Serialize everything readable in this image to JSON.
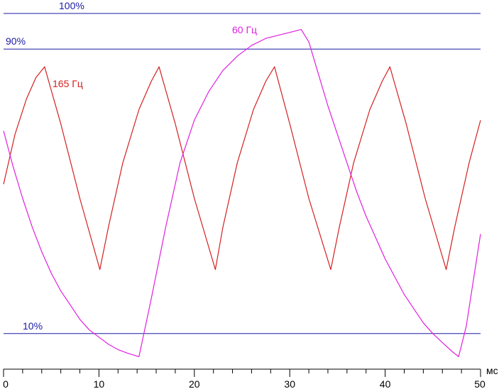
{
  "chart_data": {
    "type": "line",
    "xlabel": "мс",
    "xlim": [
      0,
      50
    ],
    "x_ticks": [
      "0",
      "10",
      "20",
      "30",
      "40",
      "50"
    ],
    "reference_lines": [
      {
        "label": "100%",
        "value": 100,
        "color": "#1a1aa6"
      },
      {
        "label": "90%",
        "value": 90,
        "color": "#1a1aa6"
      },
      {
        "label": "10%",
        "value": 10,
        "color": "#1a1aa6"
      }
    ],
    "series": [
      {
        "name": "165 Гц",
        "color": "#d42020",
        "points": [
          [
            0,
            52
          ],
          [
            1.2,
            66
          ],
          [
            2.4,
            76
          ],
          [
            3.4,
            82
          ],
          [
            4.3,
            85
          ],
          [
            6.0,
            69
          ],
          [
            8.0,
            48
          ],
          [
            10.1,
            28
          ],
          [
            11.0,
            40
          ],
          [
            12.5,
            58
          ],
          [
            14.2,
            73
          ],
          [
            15.5,
            81
          ],
          [
            16.3,
            85
          ],
          [
            18.0,
            69
          ],
          [
            20.0,
            48
          ],
          [
            22.2,
            28
          ],
          [
            23.0,
            40
          ],
          [
            24.5,
            58
          ],
          [
            26.2,
            73
          ],
          [
            27.5,
            81
          ],
          [
            28.4,
            85
          ],
          [
            30.0,
            69
          ],
          [
            32.0,
            48
          ],
          [
            34.3,
            28
          ],
          [
            35.2,
            40
          ],
          [
            36.7,
            58
          ],
          [
            38.4,
            73
          ],
          [
            39.7,
            81
          ],
          [
            40.5,
            85
          ],
          [
            42.2,
            69
          ],
          [
            44.2,
            48
          ],
          [
            46.4,
            28
          ],
          [
            47.3,
            40
          ],
          [
            48.8,
            58
          ],
          [
            50,
            70
          ]
        ]
      },
      {
        "name": "60 Гц",
        "color": "#e020e0",
        "points": [
          [
            0,
            67
          ],
          [
            1,
            57
          ],
          [
            2,
            48
          ],
          [
            3,
            40
          ],
          [
            4,
            33
          ],
          [
            5,
            27
          ],
          [
            6,
            22
          ],
          [
            7,
            18
          ],
          [
            8,
            14
          ],
          [
            9,
            11
          ],
          [
            10,
            9
          ],
          [
            11,
            7
          ],
          [
            12,
            5.5
          ],
          [
            13,
            4.5
          ],
          [
            14.2,
            3.5
          ],
          [
            15.5,
            20
          ],
          [
            17,
            40
          ],
          [
            18.5,
            58
          ],
          [
            20,
            70
          ],
          [
            21.5,
            78
          ],
          [
            23,
            84
          ],
          [
            24.5,
            88
          ],
          [
            26,
            91
          ],
          [
            27.5,
            93
          ],
          [
            29,
            94
          ],
          [
            30.5,
            95
          ],
          [
            31.2,
            95.5
          ],
          [
            32,
            92
          ],
          [
            33,
            83
          ],
          [
            34,
            74
          ],
          [
            35,
            66
          ],
          [
            36,
            58
          ],
          [
            37,
            50
          ],
          [
            38,
            43
          ],
          [
            39,
            37
          ],
          [
            40,
            31
          ],
          [
            41,
            26
          ],
          [
            42,
            21
          ],
          [
            43,
            17
          ],
          [
            44,
            13
          ],
          [
            45,
            10
          ],
          [
            46,
            7.5
          ],
          [
            47,
            5
          ],
          [
            47.7,
            3.5
          ],
          [
            48.5,
            12
          ],
          [
            50,
            38
          ]
        ]
      }
    ]
  }
}
